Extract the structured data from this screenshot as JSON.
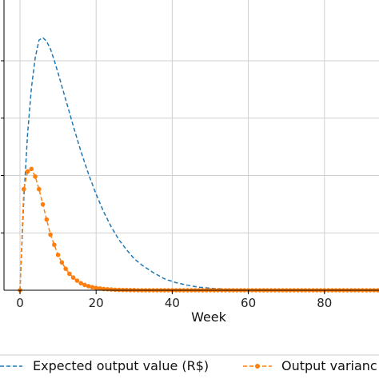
{
  "chart_data": {
    "type": "line",
    "xlabel": "Week",
    "xlim": [
      -5,
      100
    ],
    "ylim": [
      0,
      1
    ],
    "x_ticks": [
      0,
      20,
      40,
      60,
      80
    ],
    "grid": true,
    "legend_position": "bottom",
    "series": [
      {
        "name": "Expected output value (R$)",
        "color": "#1f77b4",
        "line_style": "dashed",
        "marker": "none",
        "peak_week": 6,
        "x": [
          0,
          1,
          2,
          3,
          4,
          5,
          6,
          7,
          8,
          9,
          10,
          12,
          14,
          16,
          18,
          20,
          22,
          24,
          26,
          28,
          30,
          32,
          35,
          38,
          41,
          44,
          47,
          50,
          55,
          60,
          65,
          70,
          75,
          80,
          85,
          90,
          95,
          100
        ],
        "y": [
          0,
          0.36,
          0.62,
          0.8,
          0.92,
          0.99,
          1.0,
          0.985,
          0.955,
          0.91,
          0.86,
          0.755,
          0.65,
          0.55,
          0.46,
          0.38,
          0.31,
          0.25,
          0.2,
          0.16,
          0.125,
          0.1,
          0.07,
          0.045,
          0.03,
          0.02,
          0.012,
          0.008,
          0.004,
          0.002,
          0.001,
          0,
          0,
          0,
          0,
          0,
          0,
          0
        ]
      },
      {
        "name": "Output varianc",
        "color": "#ff7f0e",
        "line_style": "dashed",
        "marker": "circle",
        "peak_week": 3,
        "x": [
          0,
          1,
          2,
          3,
          4,
          5,
          6,
          7,
          8,
          9,
          10,
          11,
          12,
          13,
          14,
          15,
          16,
          17,
          18,
          19,
          20,
          21,
          22,
          23,
          24,
          25,
          26,
          27,
          28,
          29,
          30,
          31,
          32,
          33,
          34,
          35,
          36,
          37,
          38,
          39,
          40,
          41,
          42,
          43,
          44,
          45,
          46,
          47,
          48,
          49,
          50,
          51,
          52,
          53,
          54,
          55,
          56,
          57,
          58,
          59,
          60,
          61,
          62,
          63,
          64,
          65,
          66,
          67,
          68,
          69,
          70,
          71,
          72,
          73,
          74,
          75,
          76,
          77,
          78,
          79,
          80,
          81,
          82,
          83,
          84,
          85,
          86,
          87,
          88,
          89,
          90,
          91,
          92,
          93,
          94,
          95,
          96,
          97,
          98,
          99,
          100
        ],
        "y": [
          0,
          0.4,
          0.47,
          0.48,
          0.45,
          0.4,
          0.34,
          0.28,
          0.22,
          0.18,
          0.14,
          0.11,
          0.085,
          0.065,
          0.05,
          0.038,
          0.028,
          0.021,
          0.016,
          0.012,
          0.009,
          0.007,
          0.005,
          0.004,
          0.003,
          0.002,
          0.0015,
          0.001,
          0.001,
          0.0005,
          0.0005,
          0,
          0,
          0,
          0,
          0,
          0,
          0,
          0,
          0,
          0,
          0,
          0,
          0,
          0,
          0,
          0,
          0,
          0,
          0,
          0,
          0,
          0,
          0,
          0,
          0,
          0,
          0,
          0,
          0,
          0,
          0,
          0,
          0,
          0,
          0,
          0,
          0,
          0,
          0,
          0,
          0,
          0,
          0,
          0,
          0,
          0,
          0,
          0,
          0,
          0,
          0,
          0,
          0,
          0,
          0,
          0,
          0,
          0,
          0,
          0,
          0,
          0,
          0,
          0,
          0,
          0,
          0,
          0,
          0,
          0
        ]
      }
    ]
  }
}
